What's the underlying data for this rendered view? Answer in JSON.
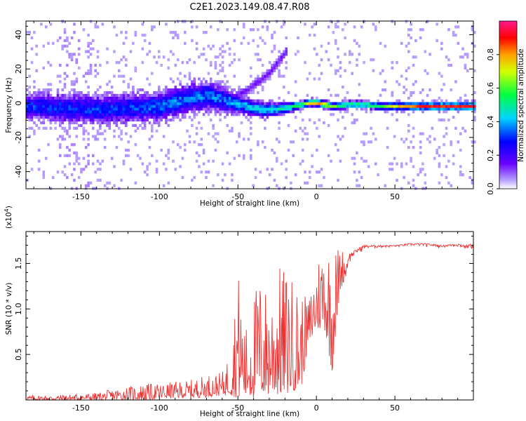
{
  "figure": {
    "title": "C2E1.2023.149.08.47.R08"
  },
  "colors": {
    "snr_line": "#ee3333",
    "frame": "#000000"
  },
  "chart_data": [
    {
      "type": "heatmap",
      "xlabel": "Height of straight line (km)",
      "ylabel": "Frequency (Hz)",
      "xlim": [
        -185,
        100
      ],
      "ylim": [
        -50,
        48
      ],
      "x_ticks": [
        -150,
        -100,
        -50,
        0,
        50
      ],
      "y_ticks": [
        -40,
        -20,
        0,
        20,
        40
      ],
      "colormap": "rainbow (purple-blue-cyan-green-yellow-red-magenta)",
      "colorbar": {
        "label": "Normalized spectral amplitude",
        "range": [
          0.0,
          1.0
        ],
        "ticks": [
          "0.0",
          "0.2",
          "0.4",
          "0.6",
          "0.8"
        ]
      },
      "ridge": {
        "description": "central frequency ridge",
        "x": [
          -185,
          -160,
          -140,
          -120,
          -100,
          -80,
          -70,
          -60,
          -50,
          -40,
          -35,
          -30,
          -20,
          -10,
          -5,
          0,
          5,
          10,
          20,
          30,
          40,
          60,
          80,
          95
        ],
        "freq_hz": [
          -2,
          -3,
          -4,
          -3,
          -2,
          3,
          4,
          2,
          -1,
          -3,
          -4,
          -4,
          -3,
          -1,
          0,
          0,
          -1,
          -2,
          -1,
          -1,
          -2,
          -2,
          -2,
          -2
        ],
        "amplitude": [
          0.3,
          0.3,
          0.3,
          0.3,
          0.35,
          0.35,
          0.35,
          0.35,
          0.4,
          0.45,
          0.45,
          0.45,
          0.5,
          0.6,
          0.75,
          0.8,
          0.8,
          0.6,
          0.55,
          0.55,
          0.6,
          0.85,
          0.9,
          0.9
        ],
        "spread_hz": [
          7,
          8,
          8,
          8,
          8,
          8,
          8,
          7,
          5,
          4,
          4,
          4,
          3,
          2,
          2,
          2,
          2,
          2,
          2,
          2,
          2,
          2,
          2,
          2
        ]
      },
      "branch": {
        "description": "faint upper branch",
        "x": [
          -50,
          -45,
          -40,
          -35,
          -30,
          -25,
          -20
        ],
        "freq_hz": [
          5,
          7,
          11,
          14,
          18,
          24,
          30
        ]
      }
    },
    {
      "type": "line",
      "title": "",
      "xlabel": "Height of straight line (km)",
      "ylabel": "SNR (10 * v/v)",
      "y_multiplier": "(x10^4)",
      "y_multiplier_base": "(x10",
      "y_multiplier_exp": "4",
      "y_multiplier_close": ")",
      "xlim": [
        -185,
        100
      ],
      "ylim": [
        0.0,
        1.85
      ],
      "x_ticks": [
        -150,
        -100,
        -50,
        0,
        50
      ],
      "y_ticks": [
        0.5,
        1.0,
        1.5
      ],
      "y_tick_labels": [
        "0.5",
        "1.0",
        "1.5"
      ],
      "series": [
        {
          "x": [
            -185,
            -170,
            -160,
            -150,
            -140,
            -130,
            -120,
            -110,
            -100,
            -90,
            -80,
            -70,
            -60,
            -55,
            -50,
            -45,
            -40,
            -35,
            -30,
            -25,
            -20,
            -15,
            -10,
            -5,
            0,
            5,
            10,
            15,
            20,
            25,
            30,
            40,
            50,
            60,
            70,
            80,
            90,
            95,
            100
          ],
          "y_upper_env": [
            0.05,
            0.05,
            0.06,
            0.07,
            0.08,
            0.12,
            0.15,
            0.18,
            0.18,
            0.2,
            0.22,
            0.28,
            0.3,
            0.55,
            1.45,
            0.8,
            1.2,
            1.4,
            1.15,
            1.5,
            1.45,
            1.35,
            1.2,
            1.1,
            1.55,
            1.8,
            1.7,
            1.7,
            1.6,
            1.65,
            1.7,
            1.7,
            1.7,
            1.72,
            1.72,
            1.7,
            1.72,
            1.7,
            1.72
          ],
          "y_lower_env": [
            0.0,
            0.0,
            0.0,
            0.0,
            0.0,
            0.0,
            0.0,
            0.0,
            0.01,
            0.02,
            0.02,
            0.03,
            0.05,
            0.05,
            0.02,
            0.02,
            0.02,
            0.03,
            0.05,
            0.05,
            0.05,
            0.1,
            0.1,
            0.6,
            0.75,
            0.8,
            0.3,
            1.2,
            1.4,
            1.55,
            1.62,
            1.65,
            1.66,
            1.67,
            1.66,
            1.66,
            1.65,
            1.62,
            1.62
          ]
        }
      ]
    }
  ]
}
